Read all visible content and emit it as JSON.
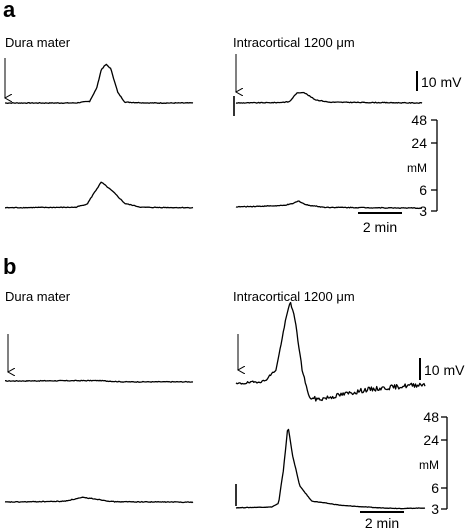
{
  "chart_data": [
    {
      "panel": "a",
      "type": "line",
      "traces": [
        {
          "column": "left",
          "row": "top",
          "label": "Dura mater",
          "marker": "arrow",
          "points": [
            [
              0,
              0
            ],
            [
              3,
              0
            ],
            [
              3.6,
              0.4
            ],
            [
              3.9,
              3.5
            ],
            [
              4.1,
              8.0
            ],
            [
              4.3,
              9.2
            ],
            [
              4.5,
              8.2
            ],
            [
              4.8,
              2.5
            ],
            [
              5.1,
              0.2
            ],
            [
              6.2,
              0
            ],
            [
              8,
              0
            ]
          ]
        },
        {
          "column": "left",
          "row": "bottom",
          "points": [
            [
              0,
              3.4
            ],
            [
              3,
              3.5
            ],
            [
              3.5,
              4.3
            ],
            [
              3.8,
              7.0
            ],
            [
              4.1,
              9.5
            ],
            [
              4.6,
              7.2
            ],
            [
              5.1,
              4.4
            ],
            [
              5.8,
              3.5
            ],
            [
              8,
              3.4
            ]
          ]
        },
        {
          "column": "right",
          "row": "top",
          "label": "Intracortical 1200 μm",
          "marker": "arrow",
          "points": [
            [
              0,
              0
            ],
            [
              1.8,
              0.1
            ],
            [
              2.3,
              0.3
            ],
            [
              2.6,
              2.3
            ],
            [
              2.9,
              2.6
            ],
            [
              3.4,
              0.8
            ],
            [
              4,
              0.2
            ],
            [
              8,
              0
            ]
          ]
        },
        {
          "column": "right",
          "row": "bottom",
          "points": [
            [
              0,
              3.6
            ],
            [
              2.0,
              3.9
            ],
            [
              2.4,
              4.3
            ],
            [
              2.7,
              5.0
            ],
            [
              3.0,
              4.1
            ],
            [
              3.8,
              3.5
            ],
            [
              8,
              3.3
            ]
          ]
        }
      ]
    },
    {
      "panel": "b",
      "type": "line",
      "traces": [
        {
          "column": "left",
          "row": "top",
          "label": "Dura mater",
          "marker": "arrow",
          "points": [
            [
              0,
              0
            ],
            [
              4,
              0.1
            ],
            [
              5,
              -0.2
            ],
            [
              8,
              -0.2
            ]
          ]
        },
        {
          "column": "left",
          "row": "bottom",
          "points": [
            [
              0,
              3.3
            ],
            [
              2.5,
              3.5
            ],
            [
              3.3,
              4.4
            ],
            [
              3.8,
              4.1
            ],
            [
              4.6,
              3.4
            ],
            [
              8,
              3.3
            ]
          ]
        },
        {
          "column": "right",
          "row": "top",
          "label": "Intracortical 1200 μm",
          "marker": "arrow",
          "points": [
            [
              0,
              0
            ],
            [
              1.2,
              1.0
            ],
            [
              1.7,
              5
            ],
            [
              2.1,
              22
            ],
            [
              2.3,
              28.6
            ],
            [
              2.5,
              22
            ],
            [
              2.8,
              5
            ],
            [
              3.1,
              -4.8
            ],
            [
              3.5,
              -5.3
            ],
            [
              5.5,
              -2.0
            ],
            [
              8,
              0
            ]
          ]
        },
        {
          "column": "right",
          "row": "bottom",
          "points": [
            [
              0,
              3.3
            ],
            [
              1.5,
              3.6
            ],
            [
              1.8,
              5
            ],
            [
              2.0,
              18
            ],
            [
              2.2,
              36
            ],
            [
              2.4,
              24
            ],
            [
              2.7,
              12
            ],
            [
              3.2,
              6
            ],
            [
              4.5,
              4.2
            ],
            [
              6,
              3.3
            ],
            [
              7,
              3.0
            ],
            [
              8,
              3.2
            ]
          ]
        }
      ]
    }
  ],
  "scale_bars": {
    "voltage": "10 mV",
    "time": "2 min"
  },
  "concentration_axis": {
    "unit": "mM",
    "ticks": [
      "48",
      "24",
      "6",
      "3"
    ]
  }
}
